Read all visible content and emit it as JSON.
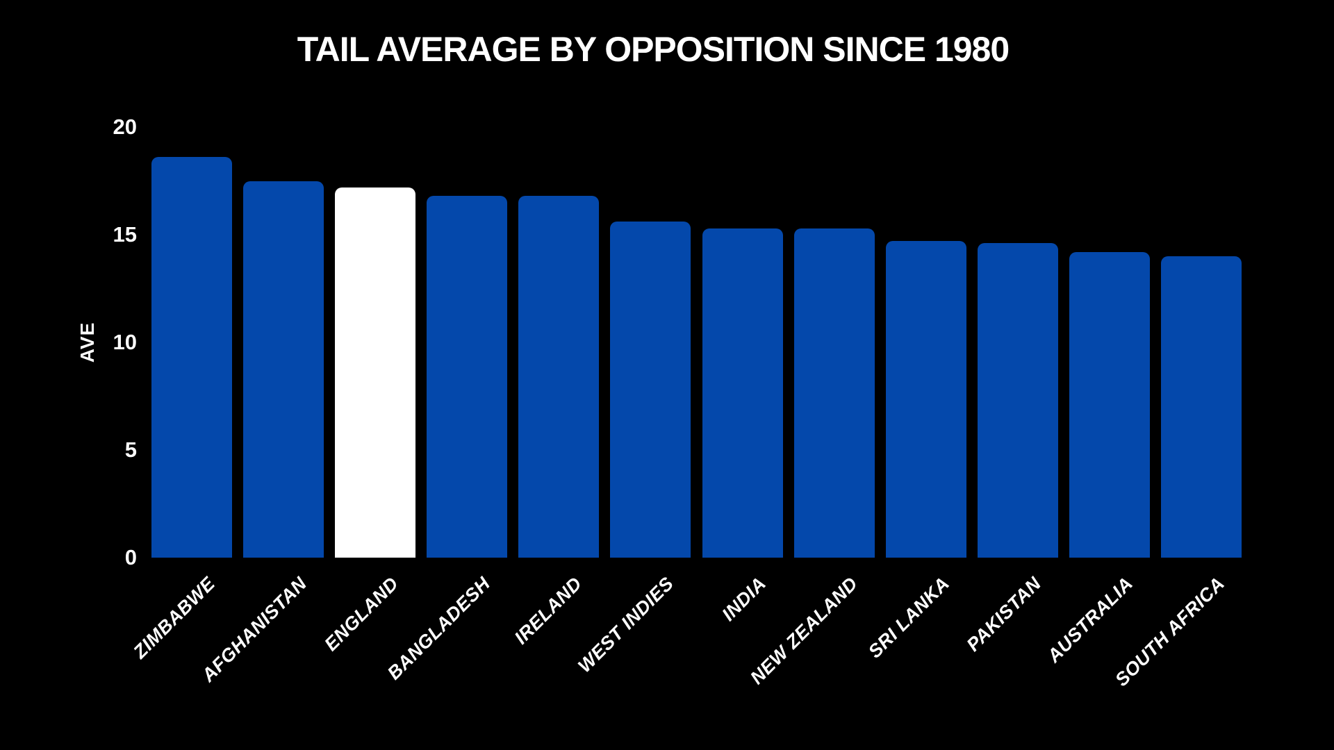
{
  "chart_data": {
    "type": "bar",
    "title": "TAIL AVERAGE BY OPPOSITION SINCE 1980",
    "xlabel": "",
    "ylabel": "AVE",
    "categories": [
      "ZIMBABWE",
      "AFGHANISTAN",
      "ENGLAND",
      "BANGLADESH",
      "IRELAND",
      "WEST INDIES",
      "INDIA",
      "NEW ZEALAND",
      "SRI LANKA",
      "PAKISTAN",
      "AUSTRALIA",
      "SOUTH AFRICA"
    ],
    "values": [
      18.6,
      17.5,
      17.2,
      16.8,
      16.8,
      15.6,
      15.3,
      15.3,
      14.7,
      14.6,
      14.2,
      14.0
    ],
    "ylim": [
      0,
      20
    ],
    "yticks": [
      0,
      5,
      10,
      15,
      20
    ],
    "grid": false,
    "legend_position": "none",
    "highlight_category": "ENGLAND",
    "colors": {
      "background": "#000000",
      "bar": "#0448AB",
      "highlight_bar": "#FFFFFF",
      "text": "#FFFFFF"
    }
  }
}
